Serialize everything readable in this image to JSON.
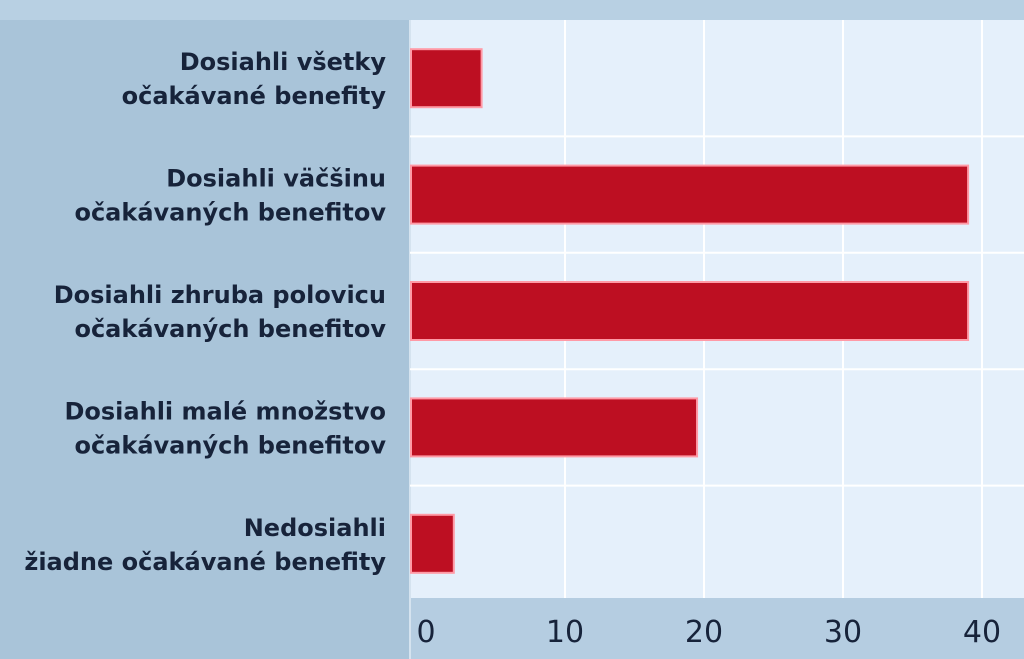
{
  "chart_data": {
    "type": "bar",
    "orientation": "horizontal",
    "title": "",
    "xlabel": "",
    "ylabel": "",
    "categories": [
      [
        "Dosiahli všetky",
        "očakávané benefity"
      ],
      [
        "Dosiahli väčšinu",
        "očakávaných benefitov"
      ],
      [
        "Dosiahli zhruba polovicu",
        "očakávaných benefitov"
      ],
      [
        "Dosiahli malé množstvo",
        "očakávaných benefitov"
      ],
      [
        "Nedosiahli",
        "žiadne očakávané benefity"
      ]
    ],
    "values": [
      4,
      39,
      39,
      19.5,
      2
    ],
    "xlim": [
      0,
      40
    ],
    "ticks": [
      0,
      10,
      20,
      30,
      40
    ],
    "tick_labels": [
      "0",
      "10",
      "20",
      "30",
      "40"
    ],
    "grid": true,
    "legend": "none",
    "colors": {
      "bar": "#bd0f22",
      "bar_edge": "#ff9aa6",
      "plot_background": "#e5f0fb",
      "label_panel": "#a9c4d9",
      "axis_band": "#b5cde1",
      "gridline": "#ffffff",
      "text": "#17233a"
    }
  }
}
